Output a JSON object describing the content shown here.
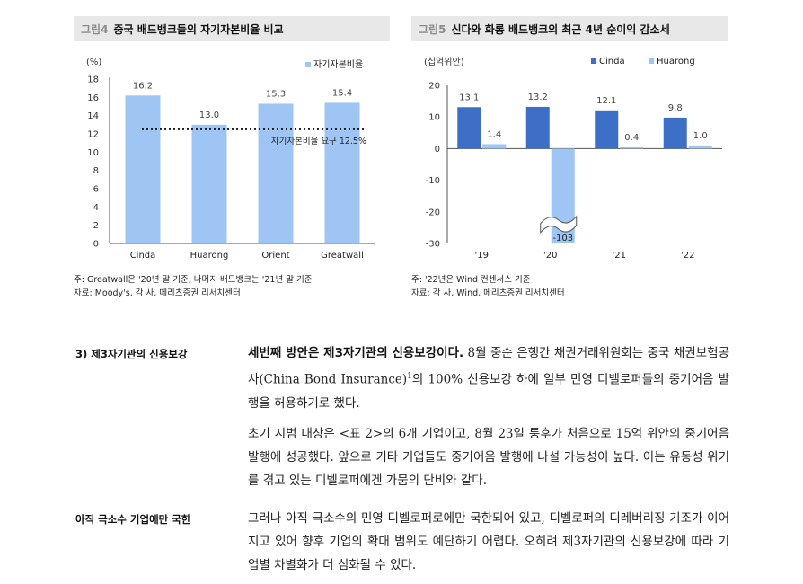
{
  "figure4": {
    "label": "그림4",
    "title": "중국 배드뱅크들의 자기자본비율 비교",
    "unit": "(%)",
    "notes": [
      "주: Greatwall은 '20년 말 기준, 나머지 배드뱅크는 '21년 말 기준",
      "자료: Moody's, 각 사, 메리츠증권 리서치센터"
    ]
  },
  "figure5": {
    "label": "그림5",
    "title": "신다와 화롱 배드뱅크의 최근 4년 순이익 감소세",
    "unit": "(십억위안)",
    "notes": [
      "주: '22년은 Wind 컨센서스 기준",
      "자료: 각 사, Wind, 메리츠증권 리서치센터"
    ]
  },
  "chart_data": [
    {
      "type": "bar",
      "categories": [
        "Cinda",
        "Huarong",
        "Orient",
        "Greatwall"
      ],
      "series": [
        {
          "name": "자기자본비율",
          "values": [
            16.2,
            13.0,
            15.3,
            15.4
          ],
          "labels": [
            "16.2",
            "13.0",
            "15.3",
            "15.4"
          ]
        }
      ],
      "ylim": [
        0,
        18
      ],
      "yticks": [
        "0",
        "2",
        "4",
        "6",
        "8",
        "10",
        "12",
        "14",
        "16",
        "18"
      ],
      "reference_line": {
        "value": 12.5,
        "label": "자기자본비율 요구 12.5%"
      },
      "legend": "top-right",
      "colors": {
        "bar": "#9ec5f4",
        "refline": "#1a1a1a"
      }
    },
    {
      "type": "bar",
      "categories": [
        "'19",
        "'20",
        "'21",
        "'22"
      ],
      "series": [
        {
          "name": "Cinda",
          "values": [
            13.1,
            13.2,
            12.1,
            9.8
          ],
          "labels": [
            "13.1",
            "13.2",
            "12.1",
            "9.8"
          ]
        },
        {
          "name": "Huarong",
          "values": [
            1.4,
            -103,
            0.4,
            1.0
          ],
          "labels": [
            "1.4",
            "-103",
            "0.4",
            "1.0"
          ]
        }
      ],
      "ylim": [
        -30,
        20
      ],
      "yticks": [
        "20",
        "10",
        "0",
        "-10",
        "-20",
        "-30"
      ],
      "axis_break": true,
      "legend": "top",
      "colors": {
        "Cinda": "#3d6fc6",
        "Huarong": "#9ec5f4"
      }
    }
  ],
  "sections": [
    {
      "heading": "3) 제3자기관의 신용보강",
      "lead": "세번째 방안은 제3자기관의 신용보강이다.",
      "para1_rest_a": " 8월 중순 은행간 채권거래위원회는 중국 채권보험공사(China Bond Insurance)",
      "footnote": "1",
      "para1_rest_b": "의 100% 신용보강 하에 일부 민영 디벨로퍼들의 중기어음 발행을 허용하기로 했다.",
      "para2": "초기 시범 대상은 <표 2>의 6개 기업이고, 8월 23일 룽후가 처음으로 15억 위안의 중기어음 발행에 성공했다. 앞으로 기타 기업들도 중기어음 발행에 나설 가능성이 높다. 이는 유동성 위기를 겪고 있는 디벨로퍼에겐 가뭄의 단비와 같다."
    },
    {
      "heading": "아직 극소수 기업에만 국한",
      "para": "그러나 아직 극소수의 민영 디벨로퍼로에만 국한되어 있고, 디벨로퍼의 디레버리징 기조가 이어지고 있어 향후 기업의 확대 범위도 예단하기 어렵다. 오히려 제3자기관의 신용보강에 따라 기업별 차별화가 더 심화될 수 있다."
    }
  ]
}
